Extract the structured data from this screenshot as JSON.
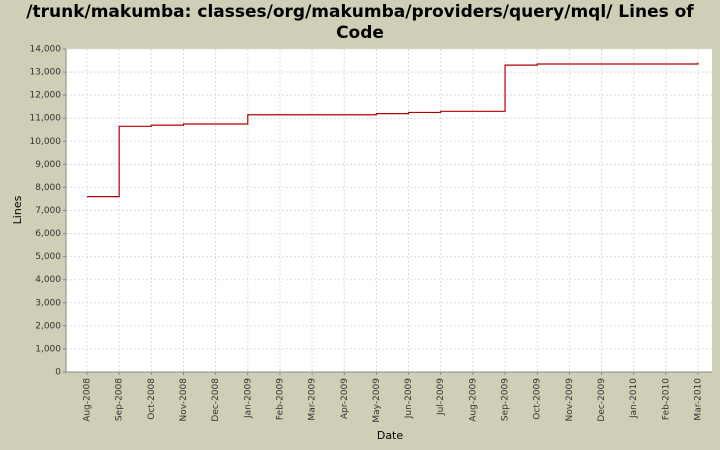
{
  "chart_data": {
    "type": "line",
    "step": true,
    "grid": true,
    "title": "/trunk/makumba: classes/org/makumba/providers/query/mql/ Lines of Code",
    "x_label": "Date",
    "y_label": "Lines",
    "x": [
      "Aug-2008",
      "Sep-2008",
      "Oct-2008",
      "Nov-2008",
      "Dec-2008",
      "Jan-2009",
      "Feb-2009",
      "Mar-2009",
      "Apr-2009",
      "May-2009",
      "Jun-2009",
      "Jul-2009",
      "Aug-2009",
      "Sep-2009",
      "Oct-2009",
      "Nov-2009",
      "Dec-2009",
      "Jan-2010",
      "Feb-2010",
      "Mar-2010"
    ],
    "series": [
      {
        "name": "Lines",
        "color": "#b00000",
        "values": [
          7600,
          10650,
          10700,
          10750,
          10750,
          11150,
          11150,
          11150,
          11150,
          11200,
          11250,
          11300,
          11300,
          13300,
          13350,
          13350,
          13350,
          13350,
          13350,
          13400
        ]
      }
    ],
    "ylim": [
      0,
      14000
    ],
    "yticks": [
      0,
      {
        "value": 1000,
        "label": "1,000"
      },
      {
        "value": 2000,
        "label": "2,000"
      },
      {
        "value": 3000,
        "label": "3,000"
      },
      {
        "value": 4000,
        "label": "4,000"
      },
      {
        "value": 5000,
        "label": "5,000"
      },
      {
        "value": 6000,
        "label": "6,000"
      },
      {
        "value": 7000,
        "label": "7,000"
      },
      {
        "value": 8000,
        "label": "8,000"
      },
      {
        "value": 9000,
        "label": "9,000"
      },
      {
        "value": 10000,
        "label": "10,000"
      },
      {
        "value": 11000,
        "label": "11,000"
      },
      {
        "value": 12000,
        "label": "12,000"
      },
      {
        "value": 13000,
        "label": "13,000"
      },
      {
        "value": 14000,
        "label": "14,000"
      }
    ]
  }
}
